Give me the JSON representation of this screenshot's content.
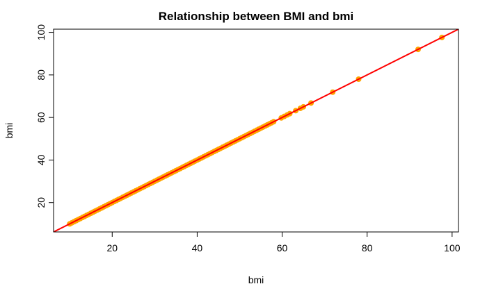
{
  "chart_data": {
    "type": "scatter",
    "title": "Relationship between BMI and bmi",
    "xlabel": "bmi",
    "ylabel": "bmi",
    "xlim": [
      6.2,
      101.5
    ],
    "ylim": [
      6.2,
      101.5
    ],
    "x_ticks": [
      20,
      40,
      60,
      80,
      100
    ],
    "y_ticks": [
      20,
      40,
      60,
      80,
      100
    ],
    "x_tick_labels": [
      "20",
      "40",
      "60",
      "80",
      "100"
    ],
    "y_tick_labels": [
      "20",
      "40",
      "60",
      "80",
      "100"
    ],
    "grid": false,
    "legend": "none",
    "point_color": "#FFA500",
    "line_color": "#FF0000",
    "series": [
      {
        "values": {
          "x": [
            10,
            10.5,
            11,
            11.5,
            12,
            12.5,
            13,
            13.5,
            14,
            14.5,
            15,
            15.5,
            16,
            16.5,
            17,
            17.5,
            18,
            18.5,
            19,
            19.5,
            20,
            20.5,
            21,
            21.5,
            22,
            22.5,
            23,
            23.5,
            24,
            24.5,
            25,
            25.5,
            26,
            26.5,
            27,
            27.5,
            28,
            28.5,
            29,
            29.5,
            30,
            30.5,
            31,
            31.5,
            32,
            32.5,
            33,
            33.5,
            34,
            34.5,
            35,
            35.5,
            36,
            36.5,
            37,
            37.5,
            38,
            38.5,
            39,
            39.5,
            40,
            40.5,
            41,
            41.5,
            42,
            42.5,
            43,
            43.5,
            44,
            44.5,
            45,
            45.5,
            46,
            46.5,
            47,
            47.5,
            48,
            48.5,
            49,
            49.5,
            50,
            50.5,
            51,
            51.5,
            52,
            52.5,
            53,
            53.5,
            54,
            54.5,
            55,
            55.5,
            56,
            56.5,
            57,
            57.5,
            58,
            59.8,
            60.5,
            61.2,
            61.8,
            63.2,
            64.3,
            65,
            66.8,
            71.9,
            78,
            92,
            97.6
          ],
          "y": [
            10,
            10.5,
            11,
            11.5,
            12,
            12.5,
            13,
            13.5,
            14,
            14.5,
            15,
            15.5,
            16,
            16.5,
            17,
            17.5,
            18,
            18.5,
            19,
            19.5,
            20,
            20.5,
            21,
            21.5,
            22,
            22.5,
            23,
            23.5,
            24,
            24.5,
            25,
            25.5,
            26,
            26.5,
            27,
            27.5,
            28,
            28.5,
            29,
            29.5,
            30,
            30.5,
            31,
            31.5,
            32,
            32.5,
            33,
            33.5,
            34,
            34.5,
            35,
            35.5,
            36,
            36.5,
            37,
            37.5,
            38,
            38.5,
            39,
            39.5,
            40,
            40.5,
            41,
            41.5,
            42,
            42.5,
            43,
            43.5,
            44,
            44.5,
            45,
            45.5,
            46,
            46.5,
            47,
            47.5,
            48,
            48.5,
            49,
            49.5,
            50,
            50.5,
            51,
            51.5,
            52,
            52.5,
            53,
            53.5,
            54,
            54.5,
            55,
            55.5,
            56,
            56.5,
            57,
            57.5,
            58,
            59.8,
            60.5,
            61.2,
            61.8,
            63.2,
            64.3,
            65,
            66.8,
            71.9,
            78,
            92,
            97.6
          ]
        }
      }
    ],
    "fit_line": {
      "intercept": 0,
      "slope": 1
    }
  }
}
